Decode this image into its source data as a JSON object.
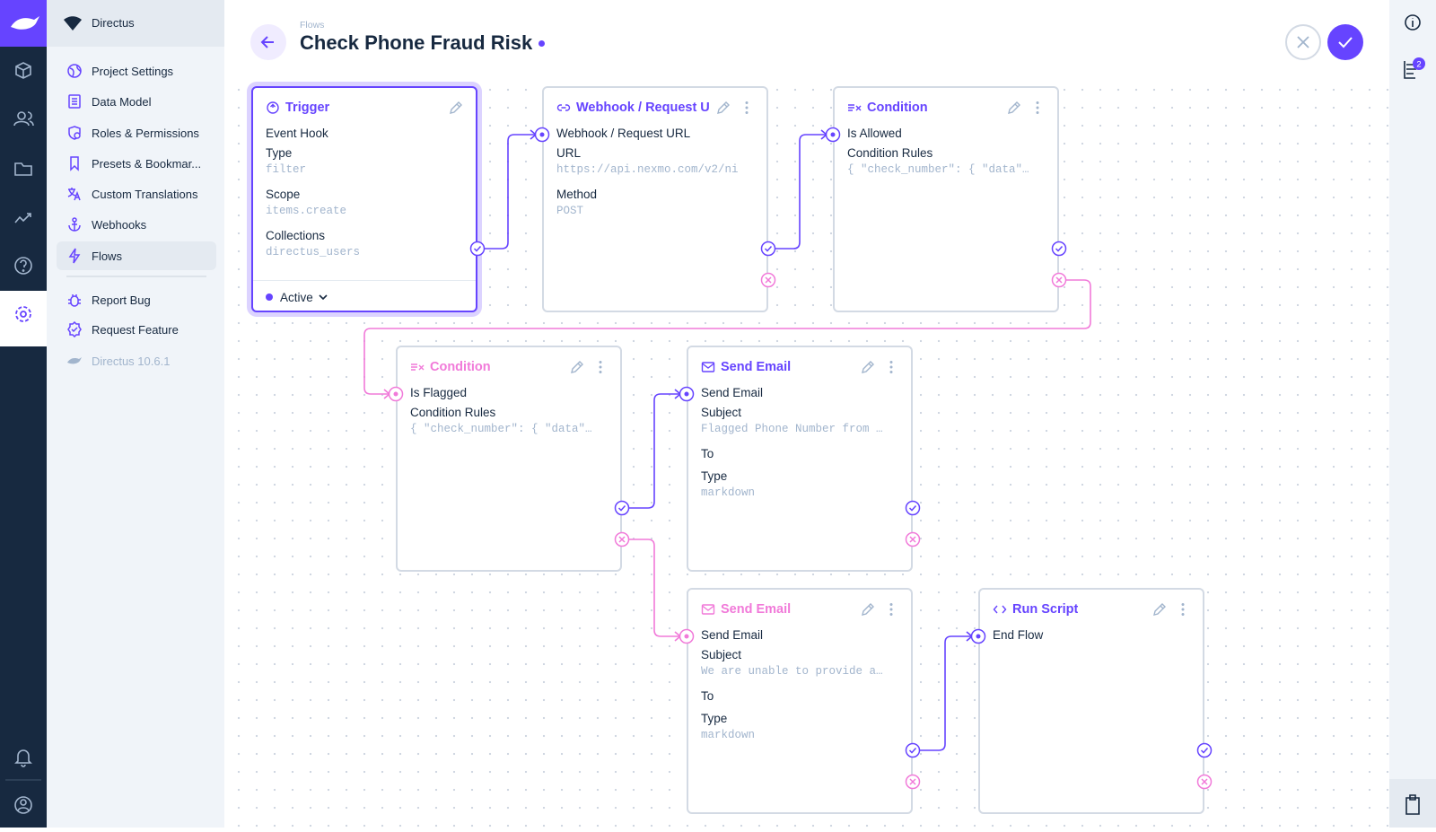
{
  "sidebar": {
    "project": "Directus",
    "nav": [
      "Project Settings",
      "Data Model",
      "Roles & Permissions",
      "Presets & Bookmar...",
      "Custom Translations",
      "Webhooks",
      "Flows"
    ],
    "extra": [
      "Report Bug",
      "Request Feature"
    ],
    "version": "Directus 10.6.1"
  },
  "header": {
    "breadcrumb": "Flows",
    "title": "Check Phone Fraud Risk"
  },
  "notifications_badge": 2,
  "panels": [
    {
      "title": "Trigger",
      "subtitle": "Event Hook",
      "fields": [
        {
          "label": "Type",
          "value": "filter"
        },
        {
          "label": "Scope",
          "value": "items.create"
        },
        {
          "label": "Collections",
          "value": "directus_users"
        }
      ],
      "status": "Active"
    },
    {
      "title": "Webhook / Request U",
      "subtitle": "Webhook / Request URL",
      "fields": [
        {
          "label": "URL",
          "value": "https://api.nexmo.com/v2/ni"
        },
        {
          "label": "Method",
          "value": "POST"
        }
      ]
    },
    {
      "title": "Condition",
      "subtitle": "Is Allowed",
      "fields": [
        {
          "label": "Condition Rules",
          "value": "{ \"check_number\": { \"data\"…"
        }
      ]
    },
    {
      "title": "Condition",
      "subtitle": "Is Flagged",
      "fields": [
        {
          "label": "Condition Rules",
          "value": "{ \"check_number\": { \"data\"…"
        }
      ]
    },
    {
      "title": "Send Email",
      "subtitle": "Send Email",
      "fields": [
        {
          "label": "Subject",
          "value": "Flagged Phone Number from …"
        },
        {
          "label": "To"
        },
        {
          "label": "Type",
          "value": "markdown"
        }
      ]
    },
    {
      "title": "Send Email",
      "subtitle": "Send Email",
      "fields": [
        {
          "label": "Subject",
          "value": "We are unable to provide a…"
        },
        {
          "label": "To"
        },
        {
          "label": "Type",
          "value": "markdown"
        }
      ]
    },
    {
      "title": "Run Script",
      "subtitle": "End Flow",
      "fields": []
    }
  ]
}
